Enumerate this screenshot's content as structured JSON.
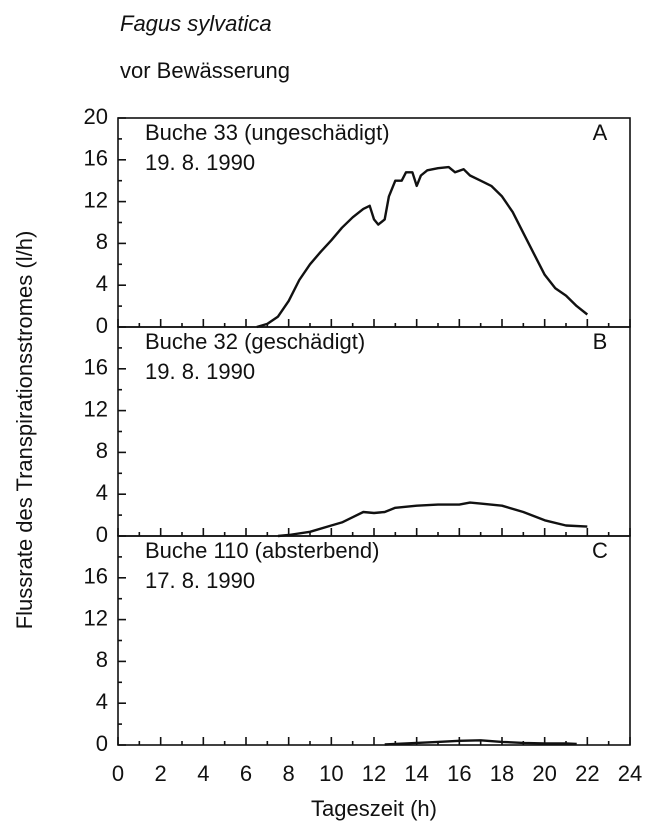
{
  "title": "Fagus sylvatica",
  "subtitle": "vor Bewässerung",
  "xlabel": "Tageszeit (h)",
  "ylabel": "Flussrate des Transpirationsstromes (l/h)",
  "chart_data": [
    {
      "type": "line",
      "label": "Buche  33 (ungeschädigt)",
      "date": "19. 8. 1990",
      "panel": "A",
      "xlim": [
        0,
        24
      ],
      "ylim": [
        0,
        20
      ],
      "yticks": [
        0,
        4,
        8,
        12,
        16,
        20
      ],
      "series": [
        {
          "color": "#111111",
          "x": [
            6.5,
            7,
            7.5,
            8,
            8.5,
            9,
            9.5,
            10,
            10.5,
            11,
            11.5,
            11.8,
            12,
            12.2,
            12.5,
            12.7,
            13,
            13.3,
            13.5,
            13.8,
            14,
            14.2,
            14.5,
            15,
            15.5,
            15.8,
            16.2,
            16.5,
            17,
            17.5,
            18,
            18.5,
            19,
            19.5,
            20,
            20.5,
            21,
            21.5,
            22
          ],
          "values": [
            0,
            0.3,
            1,
            2.5,
            4.5,
            6,
            7.2,
            8.3,
            9.5,
            10.5,
            11.3,
            11.6,
            10.3,
            9.8,
            10.3,
            12.5,
            14,
            14,
            14.8,
            14.8,
            13.5,
            14.5,
            15,
            15.2,
            15.3,
            14.8,
            15.1,
            14.5,
            14,
            13.5,
            12.5,
            11,
            9,
            7,
            5,
            3.7,
            3,
            2,
            1.2
          ]
        }
      ]
    },
    {
      "type": "line",
      "label": "Buche 32 (geschädigt)",
      "date": "19. 8. 1990",
      "panel": "B",
      "xlim": [
        0,
        24
      ],
      "ylim": [
        0,
        20
      ],
      "yticks": [
        0,
        4,
        8,
        12,
        16
      ],
      "series": [
        {
          "color": "#111111",
          "x": [
            7.5,
            8,
            9,
            10,
            10.5,
            11,
            11.5,
            12,
            12.5,
            13,
            14,
            15,
            16,
            16.5,
            17,
            18,
            19,
            20,
            21,
            22
          ],
          "values": [
            0,
            0.1,
            0.4,
            1,
            1.3,
            1.8,
            2.3,
            2.2,
            2.3,
            2.7,
            2.9,
            3.0,
            3.0,
            3.2,
            3.1,
            2.9,
            2.3,
            1.5,
            1.0,
            0.9
          ]
        }
      ]
    },
    {
      "type": "line",
      "label": "Buche 110 (absterbend)",
      "date": "17. 8. 1990",
      "panel": "C",
      "xlim": [
        0,
        24
      ],
      "ylim": [
        0,
        20
      ],
      "yticks": [
        0,
        4,
        8,
        12,
        16
      ],
      "xticks": [
        0,
        2,
        4,
        6,
        8,
        10,
        12,
        14,
        16,
        18,
        20,
        22,
        24
      ],
      "series": [
        {
          "color": "#111111",
          "x": [
            12.5,
            14,
            15,
            16,
            17,
            18,
            19,
            20,
            21,
            21.5
          ],
          "values": [
            0.05,
            0.2,
            0.3,
            0.4,
            0.45,
            0.3,
            0.2,
            0.15,
            0.15,
            0.1
          ]
        }
      ]
    }
  ]
}
